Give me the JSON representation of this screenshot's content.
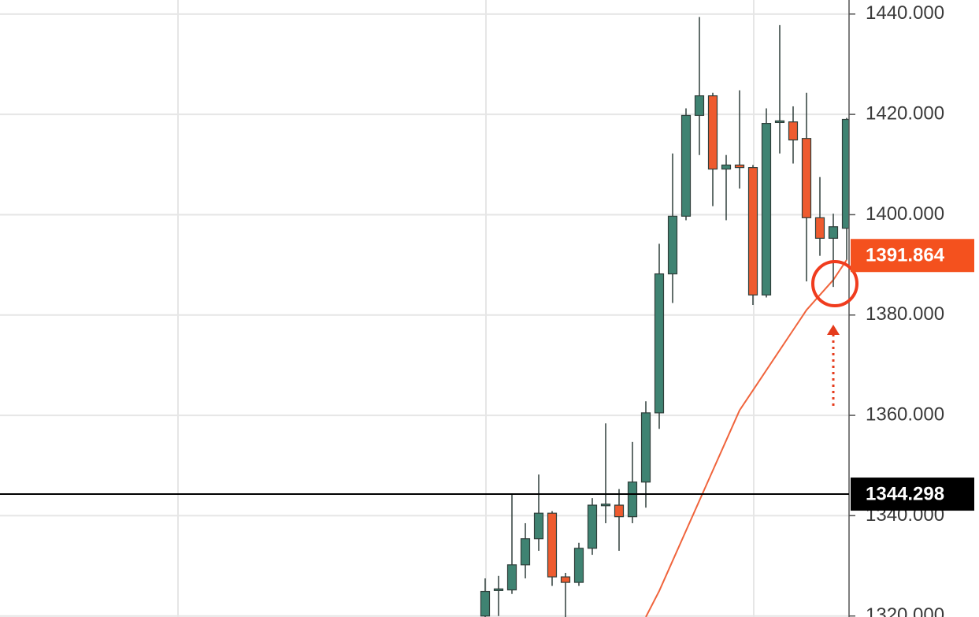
{
  "chart_data": {
    "type": "candlestick",
    "categories": [
      null,
      null,
      null,
      null,
      null,
      null,
      null,
      null,
      null,
      null,
      null,
      null,
      null,
      null,
      null,
      null,
      null,
      null,
      null,
      null,
      null,
      null,
      null,
      null,
      null,
      null,
      null,
      null
    ],
    "open": [
      1320,
      1325.2,
      1325.2,
      1330.2,
      1335.4,
      1340.5,
      1327.8,
      1326.7,
      1333.5,
      1342.1,
      1342.1,
      1339.8,
      1346.7,
      1360.5,
      1388.2,
      1399.7,
      1419.8,
      1423.7,
      1409.1,
      1409.9,
      1409.4,
      1384,
      1418.5,
      1418.5,
      1415.2,
      1399.4,
      1395.3,
      1397.3
    ],
    "high": [
      1327.5,
      1328,
      1344.3,
      1338.5,
      1348.2,
      1340.9,
      1328.6,
      1334.6,
      1343.5,
      1358.4,
      1345.3,
      1354.7,
      1362.8,
      1394.2,
      1412.2,
      1421.2,
      1439.4,
      1424.3,
      1411.9,
      1424.8,
      1409.9,
      1421.2,
      1437.8,
      1421.6,
      1424.3,
      1407.5,
      1400.2,
      1419.3
    ],
    "low": [
      1319,
      1320,
      1324.4,
      1327.5,
      1333,
      1326,
      1319.8,
      1326,
      1332.2,
      1338.5,
      1333,
      1338.5,
      1341.6,
      1357.3,
      1382.4,
      1398.9,
      1411.9,
      1401.7,
      1398.9,
      1405.2,
      1382,
      1383.5,
      1412.2,
      1410.2,
      1386.7,
      1391.8,
      1385.6,
      1391
    ],
    "close": [
      1324.9,
      1325.4,
      1330.2,
      1335.4,
      1340.5,
      1327.8,
      1326.7,
      1333.5,
      1342.1,
      1342.3,
      1339.8,
      1346.7,
      1360.5,
      1388.2,
      1399.7,
      1419.8,
      1423.7,
      1409.1,
      1409.9,
      1409.4,
      1384,
      1418.2,
      1418.7,
      1414.9,
      1399.4,
      1395.3,
      1397.6,
      1419
    ],
    "up_color": "#3f8372",
    "down_color": "#ee5b2f",
    "moving_average": {
      "color": "#f0643c",
      "values": [
        null,
        null,
        null,
        null,
        null,
        null,
        null,
        null,
        null,
        null,
        null,
        null,
        1319.8,
        1325,
        1331,
        1337,
        1343,
        1349,
        1355,
        1361,
        1365,
        1369,
        1373,
        1377,
        1381,
        1384,
        1387,
        1391
      ]
    },
    "price_lines": [
      {
        "value": 1391.864,
        "color": "#f4511e"
      },
      {
        "value": 1344.298,
        "color": "#000000"
      }
    ],
    "ylim": [
      1319.8,
      1442.8
    ],
    "yticks": [
      {
        "value": 1320,
        "label": "1320.000"
      },
      {
        "value": 1340,
        "label": "1340.000"
      },
      {
        "value": 1360,
        "label": "1360.000"
      },
      {
        "value": 1380,
        "label": "1380.000"
      },
      {
        "value": 1400,
        "label": "1400.000"
      },
      {
        "value": 1420,
        "label": "1420.000"
      },
      {
        "value": 1440,
        "label": "1440.000"
      }
    ],
    "grid": true
  }
}
